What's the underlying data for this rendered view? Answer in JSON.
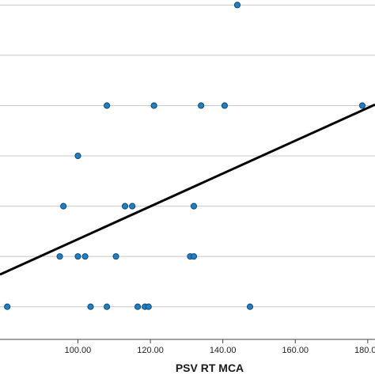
{
  "chart_data": {
    "type": "scatter",
    "title": "",
    "xlabel": "PSV RT MCA",
    "ylabel": "",
    "xlim": [
      78.5,
      182
    ],
    "ylim": [
      0.35,
      7.1
    ],
    "x_ticks": [
      100,
      120,
      140,
      160,
      180
    ],
    "x_tick_labels": [
      "100.00",
      "120.00",
      "140.00",
      "160.00",
      "180.00"
    ],
    "y_gridlines": [
      1,
      2,
      3,
      4,
      5,
      6,
      7
    ],
    "grid": "horizontal",
    "legend": "none",
    "marker_color": "#1f7fc6",
    "marker_edge_color": "#0b3f66",
    "line_color": "#000000",
    "points": [
      {
        "x": 80.5,
        "y": 1
      },
      {
        "x": 103.5,
        "y": 1
      },
      {
        "x": 108,
        "y": 1
      },
      {
        "x": 116.5,
        "y": 1
      },
      {
        "x": 118.5,
        "y": 1
      },
      {
        "x": 119.5,
        "y": 1
      },
      {
        "x": 147.5,
        "y": 1
      },
      {
        "x": 95,
        "y": 2
      },
      {
        "x": 100,
        "y": 2
      },
      {
        "x": 102,
        "y": 2
      },
      {
        "x": 110.5,
        "y": 2
      },
      {
        "x": 131,
        "y": 2
      },
      {
        "x": 132,
        "y": 2
      },
      {
        "x": 96,
        "y": 3
      },
      {
        "x": 113,
        "y": 3
      },
      {
        "x": 115,
        "y": 3
      },
      {
        "x": 132,
        "y": 3
      },
      {
        "x": 100,
        "y": 4
      },
      {
        "x": 108,
        "y": 5
      },
      {
        "x": 121,
        "y": 5
      },
      {
        "x": 134,
        "y": 5
      },
      {
        "x": 140.5,
        "y": 5
      },
      {
        "x": 178.5,
        "y": 5
      },
      {
        "x": 144,
        "y": 7
      }
    ],
    "fit_line": {
      "x": [
        78.5,
        182
      ],
      "y": [
        1.64,
        5.02
      ]
    }
  }
}
